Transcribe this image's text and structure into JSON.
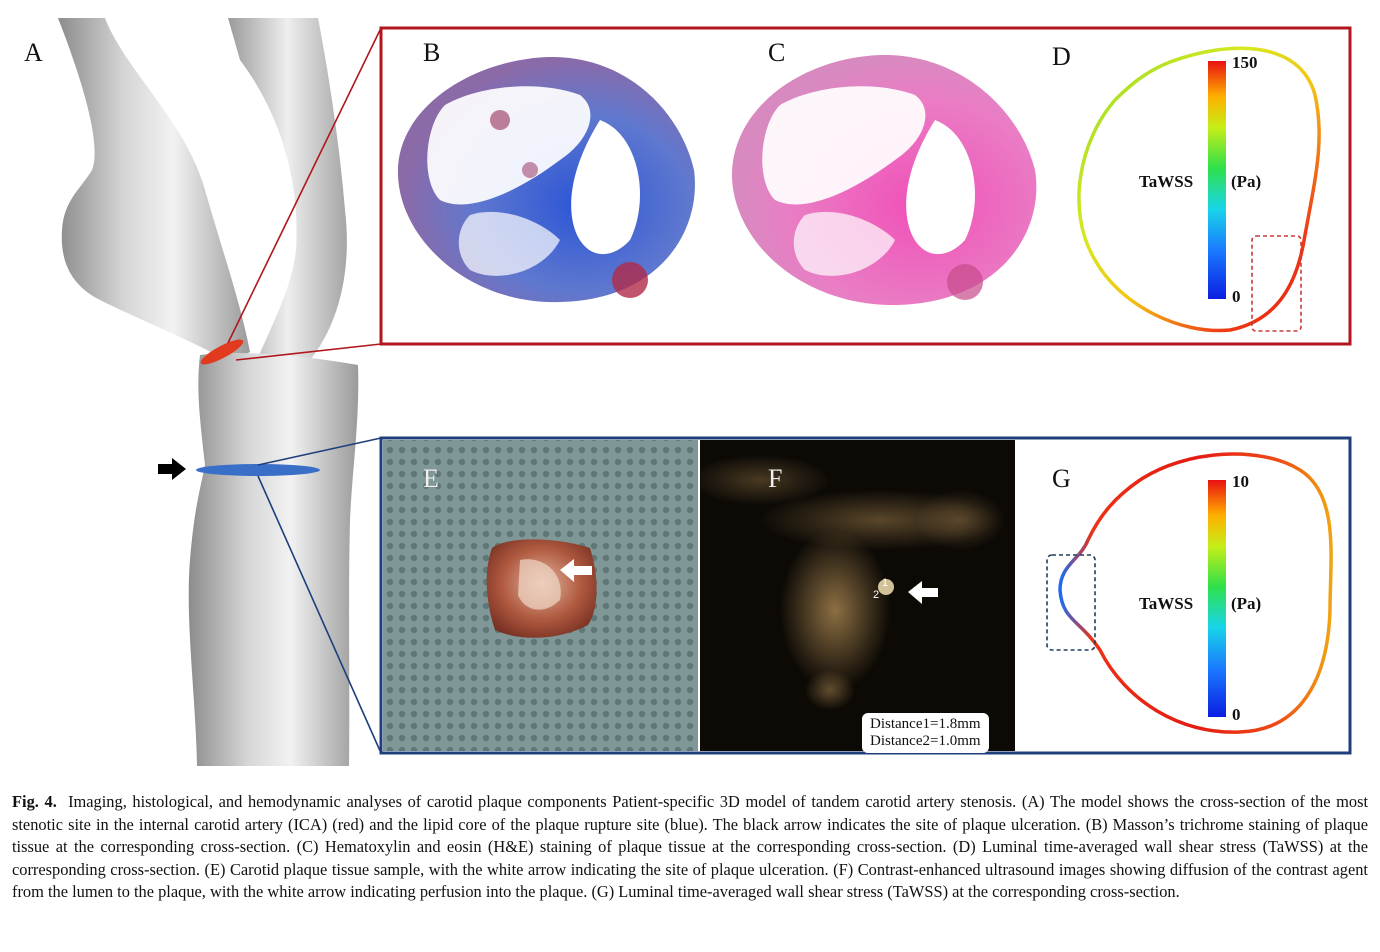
{
  "panels": {
    "a": "A",
    "b": "B",
    "c": "C",
    "d": "D",
    "e": "E",
    "f": "F",
    "g": "G"
  },
  "panel_d": {
    "scale_max": "150",
    "scale_min": "0",
    "metric_label": "TaWSS",
    "unit_label": "(Pa)"
  },
  "panel_f": {
    "distance1": "Distance1=1.8mm",
    "distance2": "Distance2=1.0mm",
    "marker_1": "1",
    "marker_2": "2"
  },
  "panel_g": {
    "scale_max": "10",
    "scale_min": "0",
    "metric_label": "TaWSS",
    "unit_label": "(Pa)"
  },
  "caption": {
    "label": "Fig. 4.",
    "text": "Imaging, histological, and hemodynamic analyses of carotid plaque components Patient-specific 3D model of tandem carotid artery stenosis. (A) The model shows the cross-section of the most stenotic site in the internal carotid artery (ICA) (red) and the lipid core of the plaque rupture site (blue). The black arrow indicates the site of plaque ulceration. (B) Masson’s trichrome staining of plaque tissue at the corresponding cross-section. (C) Hematoxylin and eosin (H&E) staining of plaque tissue at the corresponding cross-section. (D) Luminal time-averaged wall shear stress (TaWSS) at the corresponding cross-section. (E) Carotid plaque tissue sample, with the white arrow indicating the site of plaque ulceration. (F) Contrast-enhanced ultrasound images showing diffusion of the contrast agent from the lumen to the plaque, with the white arrow indicating perfusion into the plaque. (G) Luminal time-averaged wall shear stress (TaWSS) at the corresponding cross-section."
  },
  "colors": {
    "upper_frame": "#b0161c",
    "lower_frame": "#1f3f7a",
    "ica_section": "#e23a1e",
    "plaque_section": "#3a6fc8",
    "masson_blue": "#3a62c4",
    "he_pink": "#e75fb8",
    "ultrasound_bg": "#0d0a06"
  },
  "icons": {
    "ulceration_arrow": "black-right-arrow-icon",
    "tissue_arrow": "white-left-arrow-icon",
    "perfusion_arrow": "white-left-arrow-icon"
  }
}
